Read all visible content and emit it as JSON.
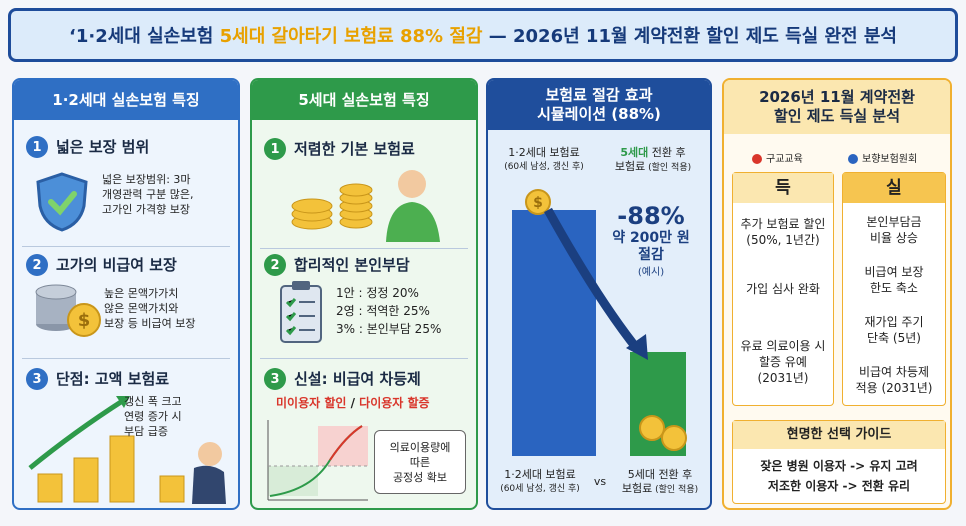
{
  "title": {
    "prefix": "‘1·2세대 실손보험 ",
    "highlight": "5세대 갈아타기 보험료 88% 절감",
    "suffix": " — 2026년 11월 계약전환 할인 제도 득실 완전 분석"
  },
  "columns": [
    {
      "header": "1·2세대 실손보험 특징",
      "items": [
        {
          "num": "1",
          "title": "넓은 보장 범위",
          "lines": [
            "넓은 보장범위: 3마",
            "개영관력 구분 많은,",
            "고가인 가격향 보장"
          ]
        },
        {
          "num": "2",
          "title": "고가의 비급여 보장",
          "lines": [
            "높은 몬액가가치",
            "않은 몬액가치와",
            "보장 등 비급여 보장"
          ]
        },
        {
          "num": "3",
          "title": "단점: 고액 보험료",
          "lines": [
            "갱신 폭 크고",
            "연령 증가 시",
            "부담 급증"
          ]
        }
      ]
    },
    {
      "header": "5세대 실손보험 특징",
      "items": [
        {
          "num": "1",
          "title": "저렴한 기본 보험료"
        },
        {
          "num": "2",
          "title": "합리적인 본인부담",
          "lines": [
            "1안 : 정정 20%",
            "2영 : 적역한 25%",
            "3% : 본인부담 25%"
          ]
        },
        {
          "num": "3",
          "title": "신설: 비급여 차등제",
          "sub": [
            "미이용자 할인",
            " / ",
            "다이용자 할증"
          ],
          "box": [
            "의료이용량에",
            "따른",
            "공정성 확보"
          ]
        }
      ]
    }
  ],
  "simulation": {
    "header": [
      "보험료 절감 효과",
      "시뮬레이션 (88%)"
    ],
    "left_top": [
      "1·2세대 보험료",
      "(60세 남성, 갱신 후)"
    ],
    "right_top": [
      "5세대",
      " 전환 후",
      "보험료",
      " (할인 적용)"
    ],
    "pct": "-88%",
    "saving": [
      "약 200만 원",
      "절감"
    ],
    "note": "(예시)",
    "left_bottom": [
      "1·2세대 보험료",
      "(60세 남성, 갱신 후)"
    ],
    "vs": "vs",
    "right_bottom": [
      "5세대 전환 후",
      "보험료",
      " (할인 적용)"
    ]
  },
  "analysis": {
    "header": [
      "2026년 11월 계약전환",
      "할인 제도 득실 분석"
    ],
    "logos": [
      "구교교육",
      "보향보험원회"
    ],
    "gain_title": "득",
    "loss_title": "실",
    "gains": [
      [
        "추가 보험료 할인",
        "(50%, 1년간)"
      ],
      [
        "가입 심사 완화"
      ],
      [
        "유료 의료이용 시",
        "할증 유예",
        "(2031년)"
      ]
    ],
    "losses": [
      [
        "본인부담금",
        "비율 상승"
      ],
      [
        "비급여 보장",
        "한도 축소"
      ],
      [
        "재가입 주기",
        "단축 (5년)"
      ],
      [
        "비급여 차등제",
        "적용 (2031년)"
      ]
    ],
    "guide_title": "현명한 선택 가이드",
    "guide": [
      "잦은 병원 이용자 -> 유지 고려",
      "저조한 이용자 -> 전환 유리"
    ]
  }
}
